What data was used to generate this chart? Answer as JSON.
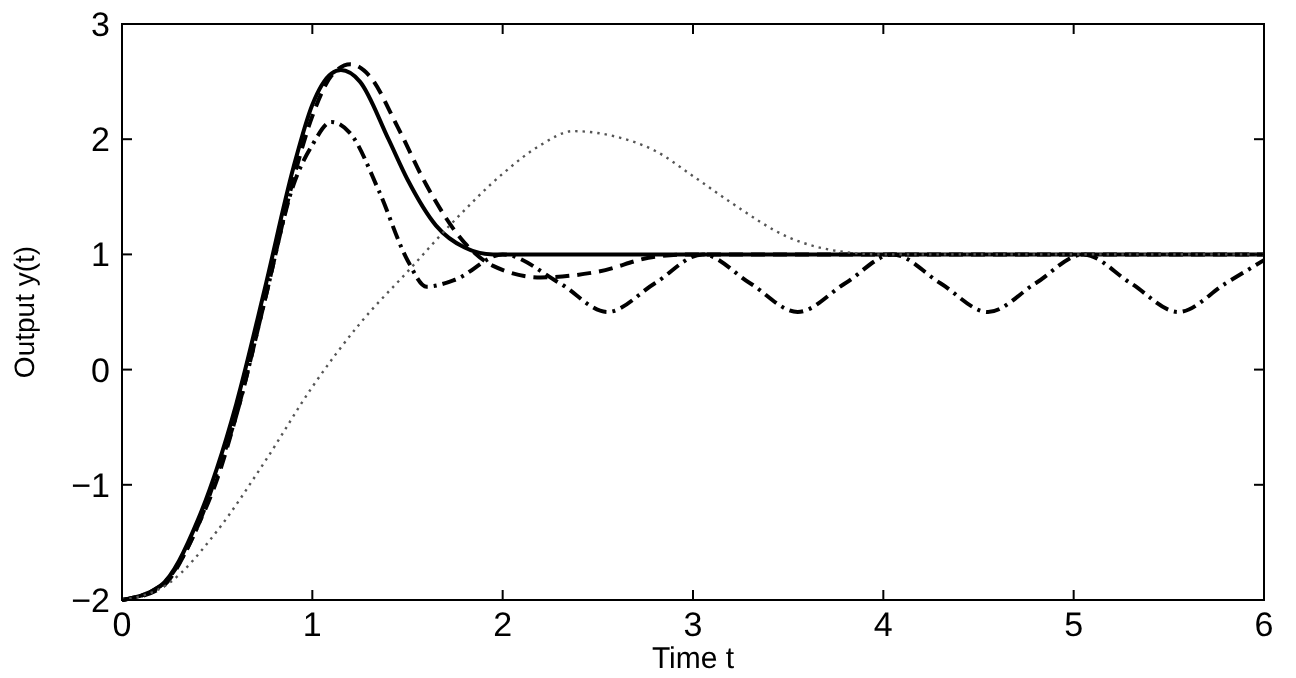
{
  "chart_data": {
    "type": "line",
    "xlabel": "Time t",
    "ylabel": "Output y(t)",
    "xlim": [
      0,
      6
    ],
    "ylim": [
      -2,
      3
    ],
    "xticks": [
      0,
      1,
      2,
      3,
      4,
      5,
      6
    ],
    "yticks": [
      {
        "value": -2,
        "label": "−2"
      },
      {
        "value": -1,
        "label": "−1"
      },
      0,
      1,
      2,
      3
    ],
    "grid": false,
    "marker": "none",
    "series": [
      {
        "color": "#000000",
        "line_style": "solid",
        "x": [
          0,
          0.2,
          0.4,
          0.5,
          0.6,
          0.75,
          0.9,
          1,
          1.1,
          1.15,
          1.25,
          1.4,
          1.5,
          1.65,
          1.8,
          1.95,
          2.2,
          3,
          4,
          5,
          6
        ],
        "values": [
          -2,
          -1.88,
          -1.3,
          -0.85,
          -0.3,
          0.7,
          1.75,
          2.3,
          2.57,
          2.6,
          2.5,
          2.0,
          1.65,
          1.25,
          1.06,
          1,
          1,
          1,
          1,
          1,
          1
        ]
      },
      {
        "color": "#000000",
        "line_style": "dashed",
        "x": [
          0,
          0.2,
          0.4,
          0.5,
          0.6,
          0.75,
          0.9,
          1,
          1.1,
          1.2,
          1.3,
          1.45,
          1.6,
          1.8,
          1.95,
          2.2,
          2.5,
          2.8,
          3,
          4,
          5,
          6
        ],
        "values": [
          -2,
          -1.9,
          -1.35,
          -0.95,
          -0.4,
          0.6,
          1.65,
          2.2,
          2.55,
          2.65,
          2.55,
          2.1,
          1.6,
          1.1,
          0.9,
          0.8,
          0.85,
          0.98,
          1,
          1,
          1,
          1
        ]
      },
      {
        "color": "#000000",
        "line_style": "dashdot",
        "x": [
          0,
          0.2,
          0.4,
          0.5,
          0.6,
          0.75,
          0.9,
          1,
          1.1,
          1.2,
          1.35,
          1.5,
          1.6,
          1.75,
          2,
          2.3,
          2.55,
          2.8,
          3.05,
          3.3,
          3.55,
          3.8,
          4.05,
          4.3,
          4.55,
          4.8,
          5.05,
          5.3,
          5.55,
          5.8,
          6
        ],
        "values": [
          -2,
          -1.88,
          -1.35,
          -0.9,
          -0.4,
          0.6,
          1.6,
          1.95,
          2.15,
          2.05,
          1.55,
          0.95,
          0.72,
          0.78,
          1,
          0.75,
          0.5,
          0.75,
          1,
          0.75,
          0.5,
          0.75,
          1,
          0.75,
          0.5,
          0.75,
          1,
          0.75,
          0.5,
          0.75,
          0.95
        ]
      },
      {
        "color": "#555555",
        "line_style": "dotted",
        "x": [
          0,
          0.25,
          0.5,
          0.75,
          1,
          1.25,
          1.5,
          1.75,
          2,
          2.2,
          2.37,
          2.6,
          2.8,
          3,
          3.2,
          3.5,
          3.8,
          4,
          5,
          6
        ],
        "values": [
          -2,
          -1.85,
          -1.4,
          -0.8,
          -0.15,
          0.4,
          0.85,
          1.3,
          1.7,
          1.95,
          2.07,
          2.02,
          1.9,
          1.68,
          1.45,
          1.15,
          1.02,
          1,
          1,
          1
        ]
      }
    ]
  }
}
